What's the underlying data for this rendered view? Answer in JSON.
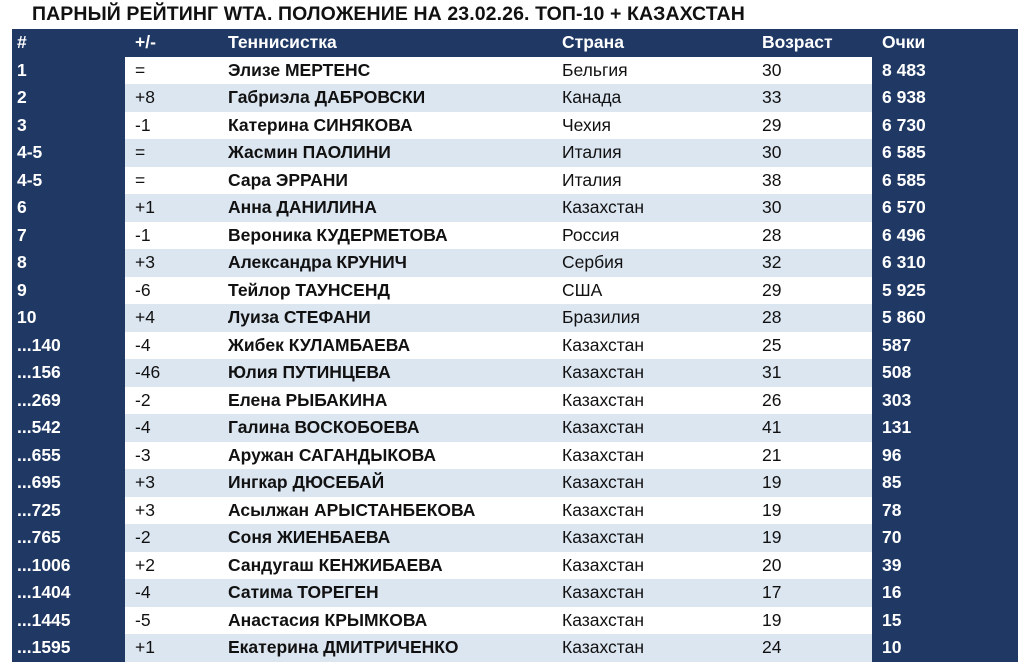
{
  "title": "ПАРНЫЙ РЕЙТИНГ WTA. ПОЛОЖЕНИЕ НА 23.02.26. ТОП-10 + КАЗАХСТАН",
  "colors": {
    "header": "#1f3864",
    "stripe": "#dce6f1"
  },
  "columns": [
    "#",
    "+/-",
    "Теннисистка",
    "Страна",
    "Возраст",
    "Очки"
  ],
  "rows": [
    [
      "1",
      "=",
      "Элизе МЕРТЕНС",
      "Бельгия",
      "30",
      "8 483"
    ],
    [
      "2",
      "+8",
      "Габриэла ДАБРОВСКИ",
      "Канада",
      "33",
      "6 938"
    ],
    [
      "3",
      "-1",
      "Катерина СИНЯКОВА",
      "Чехия",
      "29",
      "6 730"
    ],
    [
      "4-5",
      "=",
      "Жасмин ПАОЛИНИ",
      "Италия",
      "30",
      "6 585"
    ],
    [
      "4-5",
      "=",
      "Сара ЭРРАНИ",
      "Италия",
      "38",
      "6 585"
    ],
    [
      "6",
      "+1",
      "Анна ДАНИЛИНА",
      "Казахстан",
      "30",
      "6 570"
    ],
    [
      "7",
      "-1",
      "Вероника КУДЕРМЕТОВА",
      "Россия",
      "28",
      "6 496"
    ],
    [
      "8",
      "+3",
      "Александра КРУНИЧ",
      "Сербия",
      "32",
      "6 310"
    ],
    [
      "9",
      "-6",
      "Тейлор ТАУНСЕНД",
      "США",
      "29",
      "5 925"
    ],
    [
      "10",
      "+4",
      "Луиза СТЕФАНИ",
      "Бразилия",
      "28",
      "5 860"
    ],
    [
      "...140",
      "-4",
      "Жибек КУЛАМБАЕВА",
      "Казахстан",
      "25",
      "587"
    ],
    [
      "...156",
      "-46",
      "Юлия ПУТИНЦЕВА",
      "Казахстан",
      "31",
      "508"
    ],
    [
      "...269",
      "-2",
      "Елена РЫБАКИНА",
      "Казахстан",
      "26",
      "303"
    ],
    [
      "...542",
      "-4",
      "Галина ВОСКОБОЕВА",
      "Казахстан",
      "41",
      "131"
    ],
    [
      "...655",
      "-3",
      "Аружан САГАНДЫКОВА",
      "Казахстан",
      "21",
      "96"
    ],
    [
      "...695",
      "+3",
      "Ингкар ДЮСЕБАЙ",
      "Казахстан",
      "19",
      "85"
    ],
    [
      "...725",
      "+3",
      "Асылжан АРЫСТАНБЕКОВА",
      "Казахстан",
      "19",
      "78"
    ],
    [
      "...765",
      "-2",
      "Соня ЖИЕНБАЕВА",
      "Казахстан",
      "19",
      "70"
    ],
    [
      "...1006",
      "+2",
      "Сандугаш КЕНЖИБАЕВА",
      "Казахстан",
      "20",
      "39"
    ],
    [
      "...1404",
      "-4",
      "Сатима ТОРЕГЕН",
      "Казахстан",
      "17",
      "16"
    ],
    [
      "...1445",
      "-5",
      "Анастасия КРЫМКОВА",
      "Казахстан",
      "19",
      "15"
    ],
    [
      "...1595",
      "+1",
      "Екатерина ДМИТРИЧЕНКО",
      "Казахстан",
      "24",
      "10"
    ]
  ]
}
